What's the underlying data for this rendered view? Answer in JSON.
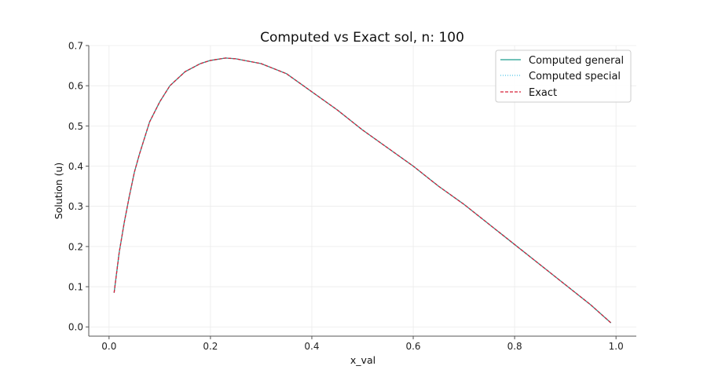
{
  "chart_data": {
    "type": "line",
    "title": "Computed vs Exact sol, n: 100",
    "xlabel": "x_val",
    "ylabel": "Solution (u)",
    "xlim": [
      -0.04,
      1.04
    ],
    "ylim": [
      -0.023,
      0.7
    ],
    "xticks": [
      "0.0",
      "0.2",
      "0.4",
      "0.6",
      "0.8",
      "1.0"
    ],
    "yticks": [
      "0.0",
      "0.1",
      "0.2",
      "0.3",
      "0.4",
      "0.5",
      "0.6",
      "0.7"
    ],
    "grid": true,
    "legend_position": "top-right",
    "x": [
      0.01,
      0.02,
      0.03,
      0.04,
      0.05,
      0.06,
      0.08,
      0.1,
      0.12,
      0.15,
      0.18,
      0.2,
      0.23,
      0.25,
      0.3,
      0.35,
      0.4,
      0.45,
      0.5,
      0.55,
      0.6,
      0.65,
      0.7,
      0.75,
      0.8,
      0.85,
      0.9,
      0.95,
      0.99
    ],
    "series": [
      {
        "name": "Computed general",
        "color": "#1f9e8f",
        "style": "solid",
        "values": [
          0.085,
          0.185,
          0.26,
          0.325,
          0.385,
          0.43,
          0.51,
          0.56,
          0.6,
          0.635,
          0.655,
          0.663,
          0.669,
          0.667,
          0.655,
          0.63,
          0.585,
          0.54,
          0.49,
          0.445,
          0.4,
          0.35,
          0.305,
          0.255,
          0.205,
          0.155,
          0.105,
          0.055,
          0.01
        ]
      },
      {
        "name": "Computed special",
        "color": "#4ec3e8",
        "style": "dotted",
        "values": [
          0.085,
          0.185,
          0.26,
          0.325,
          0.385,
          0.43,
          0.51,
          0.56,
          0.6,
          0.635,
          0.655,
          0.663,
          0.669,
          0.667,
          0.655,
          0.63,
          0.585,
          0.54,
          0.49,
          0.445,
          0.4,
          0.35,
          0.305,
          0.255,
          0.205,
          0.155,
          0.105,
          0.055,
          0.01
        ]
      },
      {
        "name": "Exact",
        "color": "#d62039",
        "style": "dashed",
        "values": [
          0.085,
          0.185,
          0.26,
          0.325,
          0.385,
          0.43,
          0.51,
          0.56,
          0.6,
          0.635,
          0.655,
          0.663,
          0.669,
          0.667,
          0.655,
          0.63,
          0.585,
          0.54,
          0.49,
          0.445,
          0.4,
          0.35,
          0.305,
          0.255,
          0.205,
          0.155,
          0.105,
          0.055,
          0.01
        ]
      }
    ]
  }
}
